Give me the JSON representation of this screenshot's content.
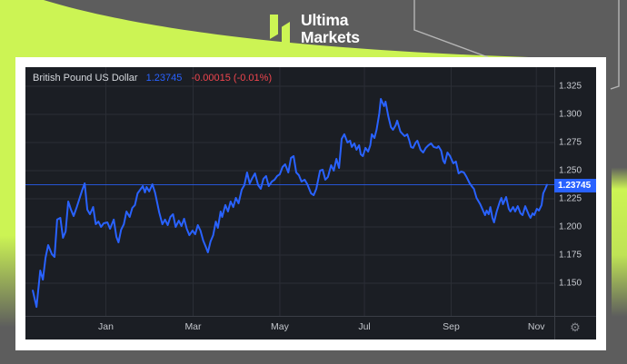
{
  "brand": {
    "logo_line1": "Ultima",
    "logo_line2": "Markets"
  },
  "header": {
    "title": "British Pound US Dollar",
    "price": "1.23745",
    "change": "-0.00015 (-0.01%)"
  },
  "axis": {
    "price_tag": "1.23745"
  },
  "icons": {
    "gear": "⚙"
  },
  "colors": {
    "brand_lime": "#ccf454",
    "accent_blue": "#2962ff",
    "negative_red": "#ef454e",
    "panel_bg": "#1b1e24",
    "outer_gray": "#5d5d5d"
  },
  "chart_data": {
    "type": "line",
    "symbol": "British Pound US Dollar",
    "last_price": 1.23745,
    "change": -0.00015,
    "change_pct": "-0.01%",
    "legend_position": "none",
    "grid": true,
    "series_color": "#2962ff",
    "y_axis_top": 1.3419,
    "y_axis_bottom": 1.121,
    "y_ticks": [
      1.325,
      1.3,
      1.275,
      1.25,
      1.225,
      1.2,
      1.175,
      1.15
    ],
    "x_ticks": [
      {
        "label": "Jan",
        "f": 0.152
      },
      {
        "label": "Mar",
        "f": 0.317
      },
      {
        "label": "May",
        "f": 0.481
      },
      {
        "label": "Jul",
        "f": 0.641
      },
      {
        "label": "Sep",
        "f": 0.805
      },
      {
        "label": "Nov",
        "f": 0.966
      }
    ],
    "points": [
      [
        0.014,
        1.1435
      ],
      [
        0.021,
        1.129
      ],
      [
        0.028,
        1.1613
      ],
      [
        0.033,
        1.1532
      ],
      [
        0.038,
        1.1726
      ],
      [
        0.043,
        1.1839
      ],
      [
        0.05,
        1.1758
      ],
      [
        0.055,
        1.1734
      ],
      [
        0.06,
        1.2065
      ],
      [
        0.066,
        1.2081
      ],
      [
        0.071,
        1.1903
      ],
      [
        0.076,
        1.196
      ],
      [
        0.081,
        1.2226
      ],
      [
        0.086,
        1.2153
      ],
      [
        0.091,
        1.2097
      ],
      [
        0.097,
        1.2177
      ],
      [
        0.102,
        1.225
      ],
      [
        0.107,
        1.2323
      ],
      [
        0.112,
        1.2387
      ],
      [
        0.117,
        1.2153
      ],
      [
        0.122,
        1.2113
      ],
      [
        0.128,
        1.2177
      ],
      [
        0.133,
        1.2024
      ],
      [
        0.138,
        1.2048
      ],
      [
        0.143,
        1.2
      ],
      [
        0.148,
        1.2032
      ],
      [
        0.155,
        1.204
      ],
      [
        0.16,
        1.1984
      ],
      [
        0.167,
        1.2065
      ],
      [
        0.172,
        1.1911
      ],
      [
        0.176,
        1.1863
      ],
      [
        0.181,
        1.1976
      ],
      [
        0.186,
        1.2024
      ],
      [
        0.191,
        1.2137
      ],
      [
        0.197,
        1.2089
      ],
      [
        0.202,
        1.2169
      ],
      [
        0.207,
        1.2194
      ],
      [
        0.212,
        1.2298
      ],
      [
        0.217,
        1.2331
      ],
      [
        0.222,
        1.2363
      ],
      [
        0.226,
        1.2306
      ],
      [
        0.229,
        1.2355
      ],
      [
        0.234,
        1.2315
      ],
      [
        0.24,
        1.2379
      ],
      [
        0.245,
        1.2306
      ],
      [
        0.248,
        1.2242
      ],
      [
        0.253,
        1.2129
      ],
      [
        0.259,
        1.2024
      ],
      [
        0.264,
        1.2065
      ],
      [
        0.269,
        1.2016
      ],
      [
        0.274,
        1.2089
      ],
      [
        0.279,
        1.2113
      ],
      [
        0.284,
        1.2
      ],
      [
        0.29,
        1.2056
      ],
      [
        0.295,
        1.2008
      ],
      [
        0.3,
        1.2073
      ],
      [
        0.305,
        1.1984
      ],
      [
        0.31,
        1.1927
      ],
      [
        0.316,
        1.1968
      ],
      [
        0.321,
        1.1935
      ],
      [
        0.326,
        1.2016
      ],
      [
        0.331,
        1.1968
      ],
      [
        0.336,
        1.1879
      ],
      [
        0.341,
        1.1823
      ],
      [
        0.345,
        1.1774
      ],
      [
        0.35,
        1.1871
      ],
      [
        0.355,
        1.1927
      ],
      [
        0.36,
        1.2048
      ],
      [
        0.364,
        1.1992
      ],
      [
        0.369,
        1.2137
      ],
      [
        0.372,
        1.2089
      ],
      [
        0.378,
        1.2194
      ],
      [
        0.383,
        1.2137
      ],
      [
        0.388,
        1.2226
      ],
      [
        0.393,
        1.2177
      ],
      [
        0.398,
        1.2258
      ],
      [
        0.403,
        1.221
      ],
      [
        0.409,
        1.2331
      ],
      [
        0.414,
        1.2371
      ],
      [
        0.419,
        1.2484
      ],
      [
        0.424,
        1.2387
      ],
      [
        0.429,
        1.2435
      ],
      [
        0.434,
        1.2476
      ],
      [
        0.44,
        1.2371
      ],
      [
        0.445,
        1.2339
      ],
      [
        0.45,
        1.2427
      ],
      [
        0.455,
        1.2452
      ],
      [
        0.46,
        1.2363
      ],
      [
        0.466,
        1.2403
      ],
      [
        0.471,
        1.2419
      ],
      [
        0.476,
        1.2452
      ],
      [
        0.481,
        1.2468
      ],
      [
        0.486,
        1.2532
      ],
      [
        0.491,
        1.2556
      ],
      [
        0.497,
        1.2484
      ],
      [
        0.502,
        1.2613
      ],
      [
        0.507,
        1.2629
      ],
      [
        0.512,
        1.2484
      ],
      [
        0.517,
        1.246
      ],
      [
        0.522,
        1.2403
      ],
      [
        0.528,
        1.2419
      ],
      [
        0.533,
        1.2379
      ],
      [
        0.54,
        1.2298
      ],
      [
        0.545,
        1.2282
      ],
      [
        0.55,
        1.2339
      ],
      [
        0.557,
        1.25
      ],
      [
        0.562,
        1.2508
      ],
      [
        0.567,
        1.2419
      ],
      [
        0.572,
        1.2444
      ],
      [
        0.578,
        1.2548
      ],
      [
        0.583,
        1.25
      ],
      [
        0.588,
        1.2605
      ],
      [
        0.593,
        1.2524
      ],
      [
        0.598,
        1.2782
      ],
      [
        0.603,
        1.2823
      ],
      [
        0.609,
        1.275
      ],
      [
        0.614,
        1.2766
      ],
      [
        0.617,
        1.271
      ],
      [
        0.622,
        1.2742
      ],
      [
        0.626,
        1.2685
      ],
      [
        0.631,
        1.2726
      ],
      [
        0.634,
        1.2645
      ],
      [
        0.638,
        1.2629
      ],
      [
        0.643,
        1.2702
      ],
      [
        0.648,
        1.2669
      ],
      [
        0.652,
        1.2726
      ],
      [
        0.655,
        1.2823
      ],
      [
        0.66,
        1.279
      ],
      [
        0.664,
        1.2863
      ],
      [
        0.669,
        1.3008
      ],
      [
        0.672,
        1.3137
      ],
      [
        0.678,
        1.3073
      ],
      [
        0.681,
        1.3113
      ],
      [
        0.686,
        1.2984
      ],
      [
        0.691,
        1.2887
      ],
      [
        0.695,
        1.2863
      ],
      [
        0.7,
        1.2903
      ],
      [
        0.703,
        1.2944
      ],
      [
        0.709,
        1.2847
      ],
      [
        0.712,
        1.2831
      ],
      [
        0.717,
        1.2806
      ],
      [
        0.722,
        1.2823
      ],
      [
        0.726,
        1.2766
      ],
      [
        0.729,
        1.271
      ],
      [
        0.733,
        1.2702
      ],
      [
        0.738,
        1.275
      ],
      [
        0.741,
        1.2766
      ],
      [
        0.747,
        1.2685
      ],
      [
        0.752,
        1.2661
      ],
      [
        0.757,
        1.2702
      ],
      [
        0.762,
        1.2726
      ],
      [
        0.767,
        1.2742
      ],
      [
        0.772,
        1.271
      ],
      [
        0.778,
        1.2702
      ],
      [
        0.781,
        1.2718
      ],
      [
        0.786,
        1.2677
      ],
      [
        0.79,
        1.2589
      ],
      [
        0.793,
        1.2565
      ],
      [
        0.798,
        1.2661
      ],
      [
        0.803,
        1.2629
      ],
      [
        0.809,
        1.2565
      ],
      [
        0.814,
        1.2581
      ],
      [
        0.819,
        1.2476
      ],
      [
        0.824,
        1.2492
      ],
      [
        0.829,
        1.2484
      ],
      [
        0.834,
        1.2444
      ],
      [
        0.84,
        1.2387
      ],
      [
        0.845,
        1.2355
      ],
      [
        0.848,
        1.2339
      ],
      [
        0.853,
        1.2258
      ],
      [
        0.86,
        1.2202
      ],
      [
        0.866,
        1.2137
      ],
      [
        0.869,
        1.2105
      ],
      [
        0.872,
        1.2145
      ],
      [
        0.876,
        1.2113
      ],
      [
        0.879,
        1.2177
      ],
      [
        0.883,
        1.2081
      ],
      [
        0.886,
        1.204
      ],
      [
        0.891,
        1.2137
      ],
      [
        0.897,
        1.2226
      ],
      [
        0.9,
        1.2258
      ],
      [
        0.903,
        1.2202
      ],
      [
        0.909,
        1.2266
      ],
      [
        0.914,
        1.2161
      ],
      [
        0.917,
        1.2137
      ],
      [
        0.922,
        1.2177
      ],
      [
        0.926,
        1.2137
      ],
      [
        0.931,
        1.2185
      ],
      [
        0.936,
        1.2121
      ],
      [
        0.94,
        1.2105
      ],
      [
        0.945,
        1.2185
      ],
      [
        0.952,
        1.2105
      ],
      [
        0.955,
        1.2081
      ],
      [
        0.959,
        1.2121
      ],
      [
        0.962,
        1.2105
      ],
      [
        0.967,
        1.2161
      ],
      [
        0.971,
        1.2145
      ],
      [
        0.976,
        1.2194
      ],
      [
        0.979,
        1.2298
      ],
      [
        0.983,
        1.2339
      ],
      [
        0.986,
        1.23745
      ]
    ]
  }
}
